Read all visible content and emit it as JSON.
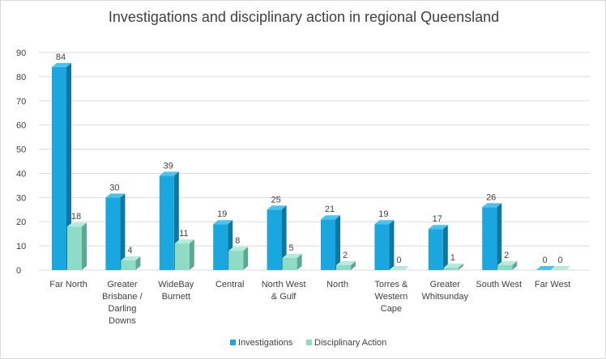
{
  "colors": {
    "investigations_front": "#1aa7e0",
    "investigations_top": "#4dc1ee",
    "investigations_side": "#0c77a3",
    "disciplinary_front": "#8fdcc6",
    "disciplinary_top": "#b6ebdc",
    "disciplinary_side": "#5ea893",
    "gridline": "#d9d9d9",
    "text": "#404040"
  },
  "chart_data": {
    "type": "bar",
    "title": "Investigations and disciplinary action in  regional Queensland",
    "xlabel": "",
    "ylabel": "",
    "ylim": [
      0,
      90
    ],
    "yticks": [
      0,
      10,
      20,
      30,
      40,
      50,
      60,
      70,
      80,
      90
    ],
    "grid": true,
    "legend_position": "bottom",
    "categories": [
      [
        "Far North"
      ],
      [
        "Greater",
        "Brisbane /",
        "Darling",
        "Downs"
      ],
      [
        "WideBay",
        "Burnett"
      ],
      [
        "Central"
      ],
      [
        "North West",
        "& Gulf"
      ],
      [
        "North"
      ],
      [
        "Torres &",
        "Western",
        "Cape"
      ],
      [
        "Greater",
        "Whitsunday"
      ],
      [
        "South West"
      ],
      [
        "Far West"
      ]
    ],
    "series": [
      {
        "name": "Investigations",
        "values": [
          84,
          30,
          39,
          19,
          25,
          21,
          19,
          17,
          26,
          0
        ]
      },
      {
        "name": "Disciplinary Action",
        "values": [
          18,
          4,
          11,
          8,
          5,
          2,
          0,
          1,
          2,
          0
        ]
      }
    ]
  }
}
